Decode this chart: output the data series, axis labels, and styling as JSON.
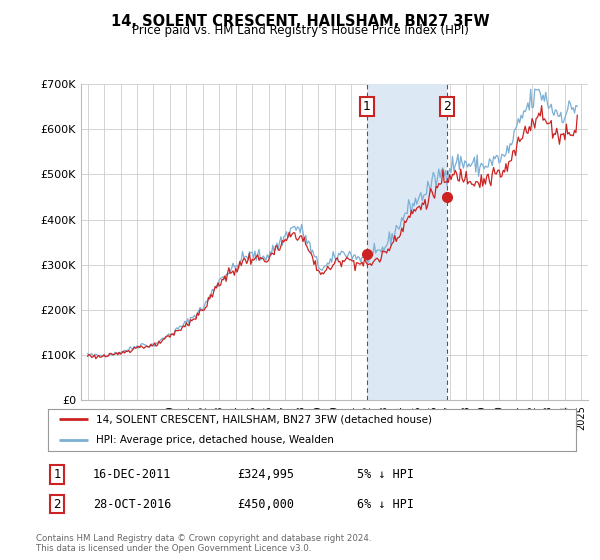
{
  "title": "14, SOLENT CRESCENT, HAILSHAM, BN27 3FW",
  "subtitle": "Price paid vs. HM Land Registry's House Price Index (HPI)",
  "background_color": "#ffffff",
  "grid_color": "#cccccc",
  "ylim": [
    0,
    700000
  ],
  "yticks": [
    0,
    100000,
    200000,
    300000,
    400000,
    500000,
    600000,
    700000
  ],
  "ytick_labels": [
    "£0",
    "£100K",
    "£200K",
    "£300K",
    "£400K",
    "£500K",
    "£600K",
    "£700K"
  ],
  "hpi_color": "#7bafd4",
  "price_color": "#cc2222",
  "shade_color": "#dce9f5",
  "marker1_year": 2011.96,
  "marker1_price": 324995,
  "marker2_year": 2016.83,
  "marker2_price": 450000,
  "legend_line1": "14, SOLENT CRESCENT, HAILSHAM, BN27 3FW (detached house)",
  "legend_line2": "HPI: Average price, detached house, Wealden",
  "annotation1_label": "1",
  "annotation1_date": "16-DEC-2011",
  "annotation1_price": "£324,995",
  "annotation1_hpi": "5% ↓ HPI",
  "annotation2_label": "2",
  "annotation2_date": "28-OCT-2016",
  "annotation2_price": "£450,000",
  "annotation2_hpi": "6% ↓ HPI",
  "footer": "Contains HM Land Registry data © Crown copyright and database right 2024.\nThis data is licensed under the Open Government Licence v3.0."
}
